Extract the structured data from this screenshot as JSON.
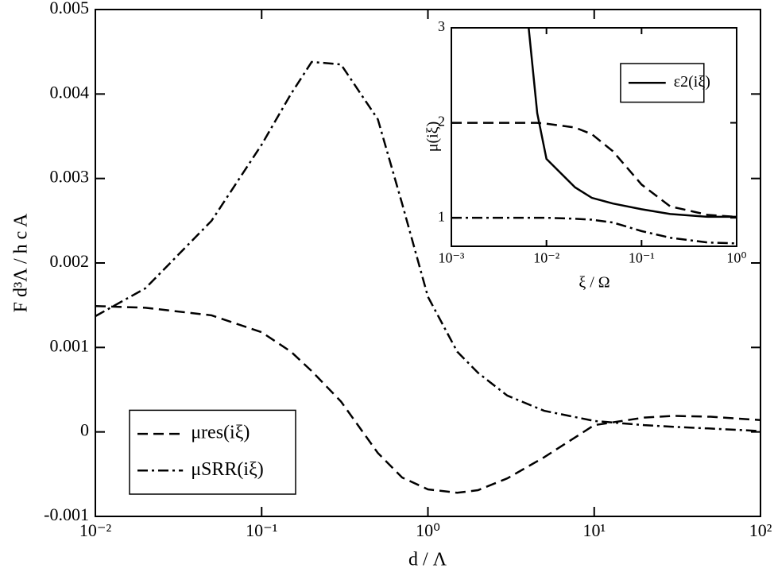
{
  "chart_data": [
    {
      "type": "line",
      "xlog": true,
      "xlabel": "d / Λ",
      "ylabel": "F d³Λ / h c A",
      "xlim": [
        0.01,
        100
      ],
      "ylim": [
        -0.001,
        0.005
      ],
      "xticks": [
        {
          "value": 0.01,
          "label": "10⁻²"
        },
        {
          "value": 0.1,
          "label": "10⁻¹"
        },
        {
          "value": 1,
          "label": "10⁰"
        },
        {
          "value": 10,
          "label": "10¹"
        },
        {
          "value": 100,
          "label": "10²"
        }
      ],
      "yticks": [
        -0.001,
        0,
        0.001,
        0.002,
        0.003,
        0.004,
        0.005
      ],
      "legend": "lower left",
      "x": [
        0.01,
        0.02,
        0.05,
        0.1,
        0.15,
        0.2,
        0.3,
        0.5,
        0.7,
        1,
        1.5,
        2,
        3,
        5,
        10,
        20,
        30,
        50,
        100
      ],
      "series": [
        {
          "name": "μres(iξ)",
          "color": "#000000",
          "style": "dashed",
          "values": [
            0.00149,
            0.00147,
            0.00138,
            0.00118,
            0.00095,
            0.00072,
            0.00036,
            -0.00025,
            -0.00054,
            -0.00068,
            -0.00072,
            -0.00069,
            -0.00055,
            -0.0003,
            8e-05,
            0.00017,
            0.00019,
            0.00018,
            0.00014
          ]
        },
        {
          "name": "μSRR(iξ)",
          "color": "#000000",
          "style": "dashdot",
          "values": [
            0.00137,
            0.0017,
            0.0025,
            0.0034,
            0.004,
            0.00438,
            0.00435,
            0.0037,
            0.0027,
            0.0016,
            0.00095,
            0.0007,
            0.00043,
            0.00025,
            0.00013,
            8e-05,
            6e-05,
            4e-05,
            1e-05
          ]
        }
      ]
    },
    {
      "type": "line",
      "xlog": true,
      "xlabel": "ξ / Ω",
      "ylabel": "μ(iξ)",
      "xlim": [
        0.001,
        1
      ],
      "ylim": [
        0.7,
        3
      ],
      "xticks": [
        {
          "value": 0.001,
          "label": "10⁻³"
        },
        {
          "value": 0.01,
          "label": "10⁻²"
        },
        {
          "value": 0.1,
          "label": "10⁻¹"
        },
        {
          "value": 1,
          "label": "10⁰"
        }
      ],
      "yticks": [
        1,
        2,
        3
      ],
      "legend": "upper right",
      "x": [
        0.001,
        0.002,
        0.005,
        0.0065,
        0.008,
        0.01,
        0.02,
        0.03,
        0.05,
        0.1,
        0.2,
        0.5,
        1
      ],
      "series": [
        {
          "name": "ε2(iξ)",
          "color": "#000000",
          "style": "solid",
          "values": [
            null,
            null,
            null,
            3,
            2.1,
            1.62,
            1.32,
            1.21,
            1.15,
            1.09,
            1.04,
            1.01,
            1.01
          ]
        },
        {
          "color": "#000000",
          "style": "dashed",
          "values": [
            2,
            2,
            2,
            2,
            2,
            1.99,
            1.95,
            1.88,
            1.7,
            1.35,
            1.12,
            1.03,
            1.01
          ]
        },
        {
          "color": "#000000",
          "style": "dashdot",
          "values": [
            1,
            1,
            1,
            1,
            1,
            1,
            0.99,
            0.98,
            0.95,
            0.86,
            0.79,
            0.74,
            0.73
          ]
        }
      ]
    }
  ]
}
